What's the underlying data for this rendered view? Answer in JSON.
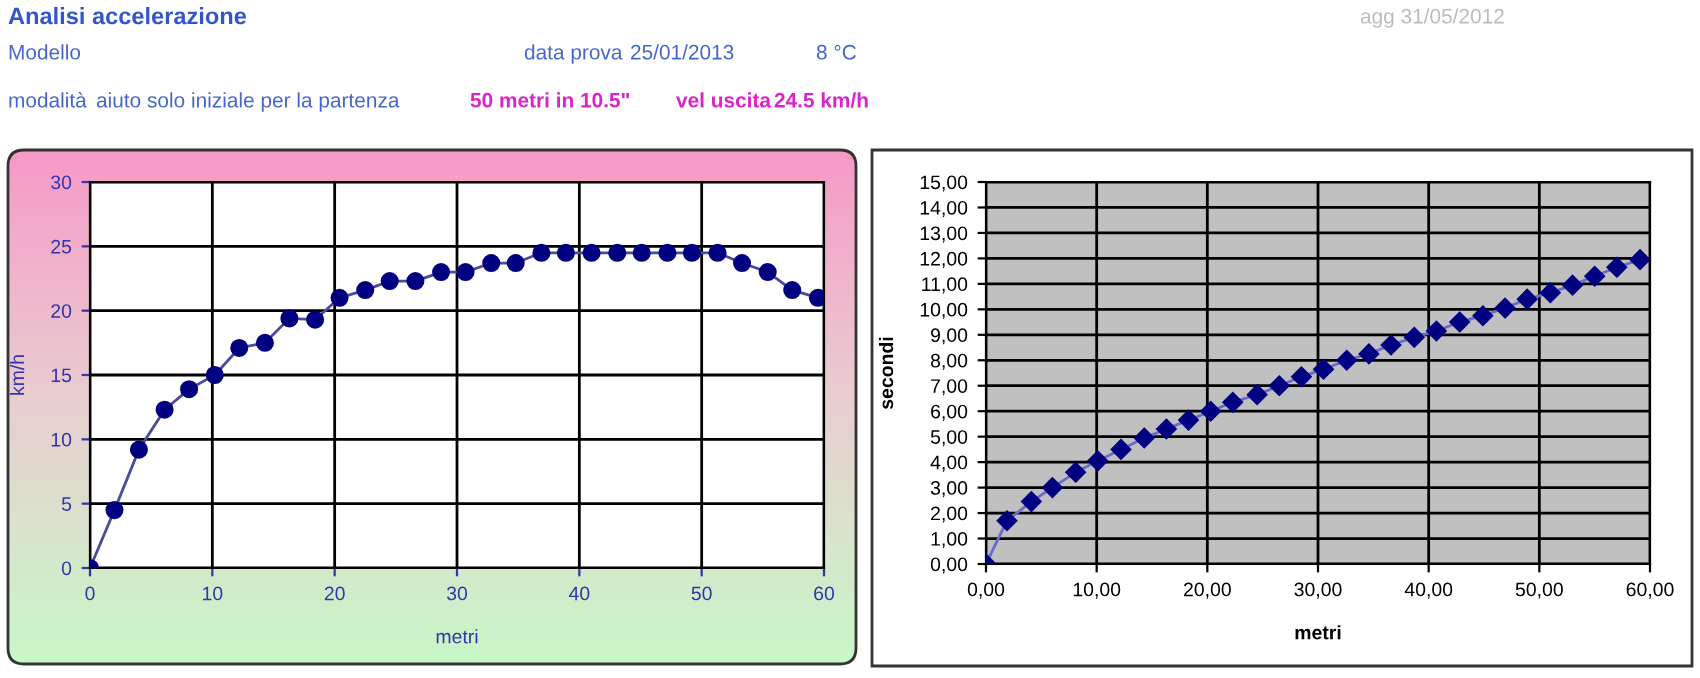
{
  "chart_data": [
    {
      "type": "line",
      "title": "Analisi accelerazione",
      "xlabel": "metri",
      "ylabel": "km/h",
      "annotations": [
        "agg 31/05/2012",
        "Modello",
        "data prova",
        "25/01/2013",
        "8 °C",
        "modalità",
        "aiuto solo iniziale per la partenza",
        "50 metri in 10.5\"",
        "vel uscita",
        "24.5 km/h"
      ],
      "series": [
        {
          "color": "#000080",
          "x": [
            0,
            2.0,
            4.0,
            6.1,
            8.1,
            10.2,
            12.2,
            14.3,
            16.3,
            18.4,
            20.4,
            22.5,
            24.5,
            26.6,
            28.7,
            30.7,
            32.8,
            34.8,
            36.9,
            38.9,
            41.0,
            43.1,
            45.1,
            47.2,
            49.2,
            51.3,
            53.3,
            55.4,
            57.4,
            59.5
          ],
          "values": [
            0,
            4.5,
            9.2,
            12.3,
            13.9,
            15.0,
            17.1,
            17.5,
            19.4,
            19.3,
            21.0,
            21.6,
            22.3,
            22.3,
            23.0,
            23.0,
            23.7,
            23.7,
            24.5,
            24.5,
            24.5,
            24.5,
            24.5,
            24.5,
            24.5,
            24.5,
            23.7,
            23.0,
            21.6,
            21.0
          ]
        }
      ],
      "xlim": [
        0,
        60
      ],
      "xticks": [
        0,
        10,
        20,
        30,
        40,
        50,
        60
      ],
      "ylim": [
        0,
        30
      ],
      "yticks": [
        0,
        5,
        10,
        15,
        20,
        25,
        30
      ],
      "grid": true,
      "marker": "circle",
      "line_style": "solid"
    },
    {
      "type": "line",
      "xlabel": "metri",
      "ylabel": "secondi",
      "series": [
        {
          "color": "#000080",
          "x": [
            0,
            1.9,
            4.1,
            6.0,
            8.1,
            10.1,
            12.2,
            14.3,
            16.3,
            18.3,
            20.3,
            22.3,
            24.5,
            26.5,
            28.5,
            30.5,
            32.6,
            34.6,
            36.6,
            38.7,
            40.7,
            42.8,
            44.9,
            46.9,
            48.9,
            51.0,
            53.0,
            55.0,
            57.0,
            59.1
          ],
          "values": [
            0,
            1.7,
            2.45,
            3.0,
            3.6,
            4.05,
            4.5,
            4.95,
            5.3,
            5.65,
            6.0,
            6.35,
            6.65,
            7.0,
            7.35,
            7.65,
            8.0,
            8.25,
            8.6,
            8.9,
            9.15,
            9.5,
            9.75,
            10.05,
            10.4,
            10.65,
            10.95,
            11.3,
            11.65,
            11.95
          ]
        }
      ],
      "xlim": [
        0,
        60
      ],
      "xticks": [
        {
          "value": 0,
          "label": "0,00"
        },
        {
          "value": 10,
          "label": "10,00"
        },
        {
          "value": 20,
          "label": "20,00"
        },
        {
          "value": 30,
          "label": "30,00"
        },
        {
          "value": 40,
          "label": "40,00"
        },
        {
          "value": 50,
          "label": "50,00"
        },
        {
          "value": 60,
          "label": "60,00"
        }
      ],
      "ylim": [
        0,
        15
      ],
      "yticks": [
        {
          "value": 0,
          "label": "0,00"
        },
        {
          "value": 1,
          "label": "1,00"
        },
        {
          "value": 2,
          "label": "2,00"
        },
        {
          "value": 3,
          "label": "3,00"
        },
        {
          "value": 4,
          "label": "4,00"
        },
        {
          "value": 5,
          "label": "5,00"
        },
        {
          "value": 6,
          "label": "6,00"
        },
        {
          "value": 7,
          "label": "7,00"
        },
        {
          "value": 8,
          "label": "8,00"
        },
        {
          "value": 9,
          "label": "9,00"
        },
        {
          "value": 10,
          "label": "10,00"
        },
        {
          "value": 11,
          "label": "11,00"
        },
        {
          "value": 12,
          "label": "12,00"
        },
        {
          "value": 13,
          "label": "13,00"
        },
        {
          "value": 14,
          "label": "14,00"
        },
        {
          "value": 15,
          "label": "15,00"
        }
      ],
      "grid": true,
      "marker": "diamond",
      "line_style": "solid"
    }
  ]
}
